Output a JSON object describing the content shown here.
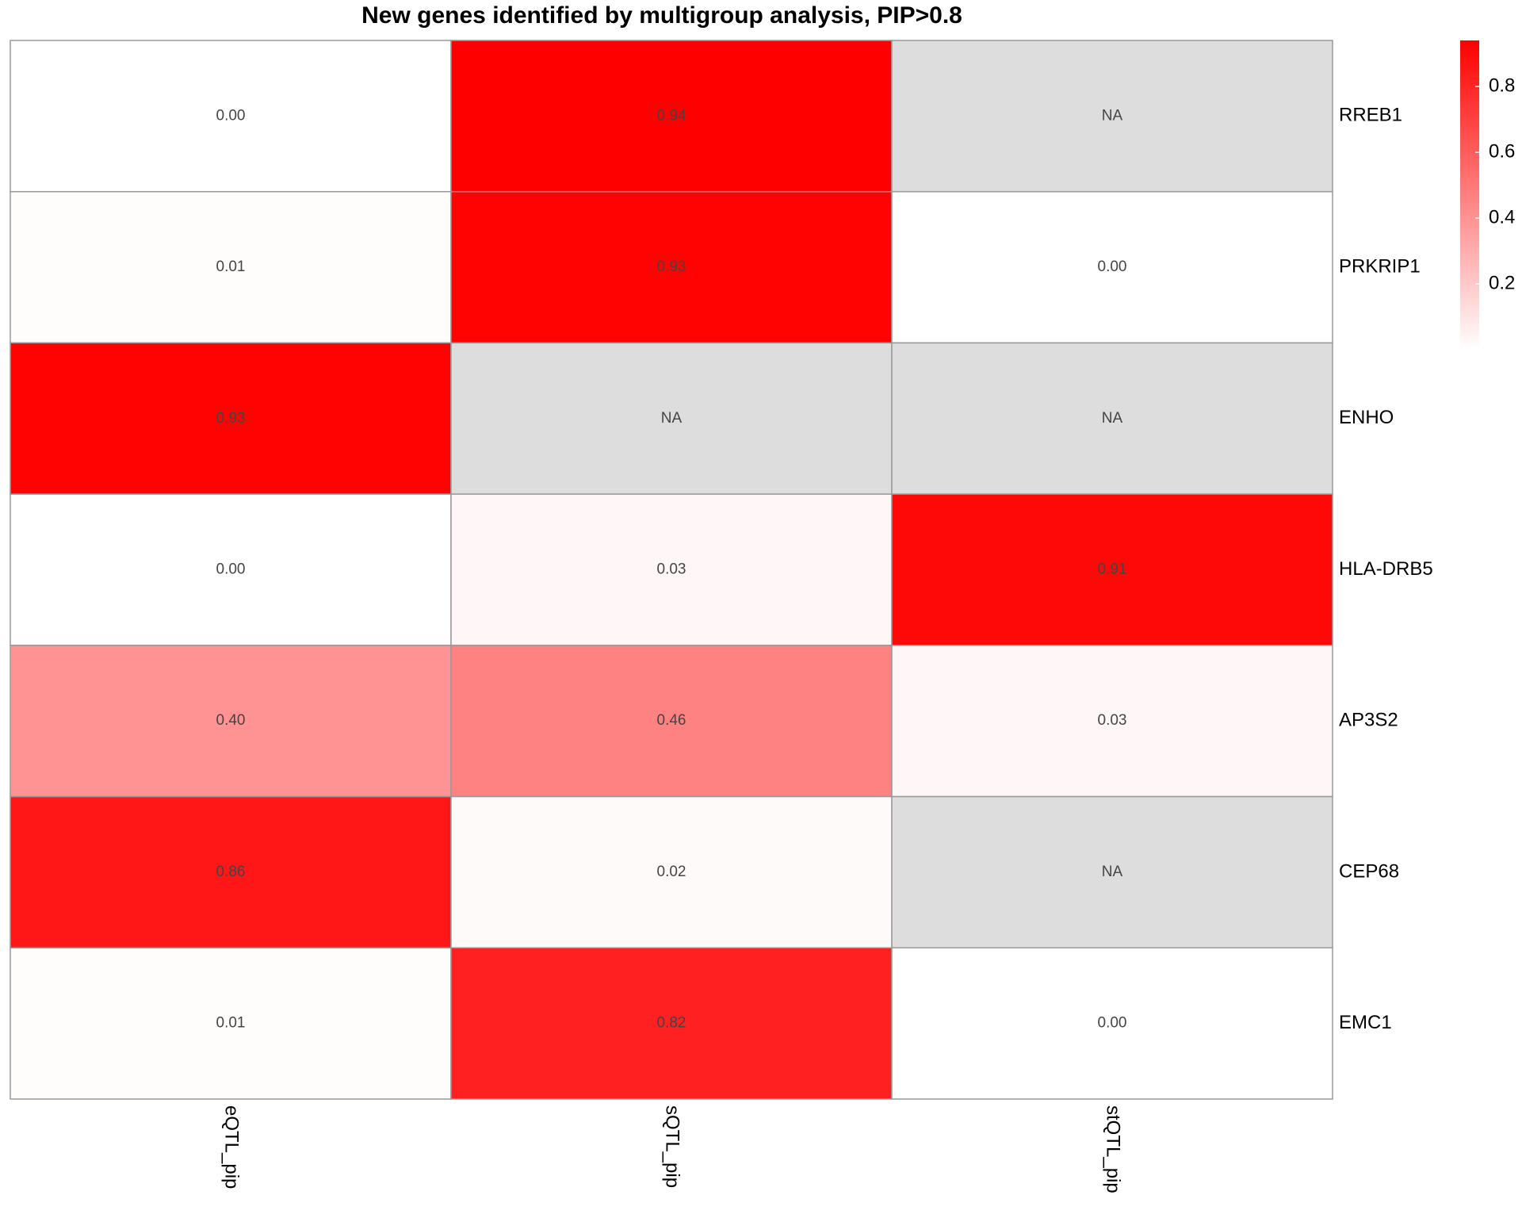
{
  "chart_data": {
    "type": "heatmap",
    "title": "New genes identified by multigroup analysis, PIP>0.8",
    "x": [
      "eQTL_pip",
      "sQTL_pip",
      "stQTL_pip"
    ],
    "categories": [
      "RREB1",
      "PRKRIP1",
      "ENHO",
      "HLA-DRB5",
      "AP3S2",
      "CEP68",
      "EMC1"
    ],
    "values": [
      [
        0.0,
        0.94,
        null
      ],
      [
        0.01,
        0.93,
        0.0
      ],
      [
        0.93,
        null,
        null
      ],
      [
        0.0,
        0.03,
        0.91
      ],
      [
        0.4,
        0.46,
        0.03
      ],
      [
        0.86,
        0.02,
        null
      ],
      [
        0.01,
        0.82,
        0.0
      ]
    ],
    "value_labels": [
      [
        "0.00",
        "0.94",
        "NA"
      ],
      [
        "0.01",
        "0.93",
        "0.00"
      ],
      [
        "0.93",
        "NA",
        "NA"
      ],
      [
        "0.00",
        "0.03",
        "0.91"
      ],
      [
        "0.40",
        "0.46",
        "0.03"
      ],
      [
        "0.86",
        "0.02",
        "NA"
      ],
      [
        "0.01",
        "0.82",
        "0.00"
      ]
    ],
    "colors": {
      "low": "#ffffff",
      "high": "#ff0000",
      "na": "#dddddd",
      "border": "#999999"
    },
    "clim": [
      0,
      0.94
    ],
    "cticks": [
      0.2,
      0.4,
      0.6,
      0.8
    ]
  }
}
